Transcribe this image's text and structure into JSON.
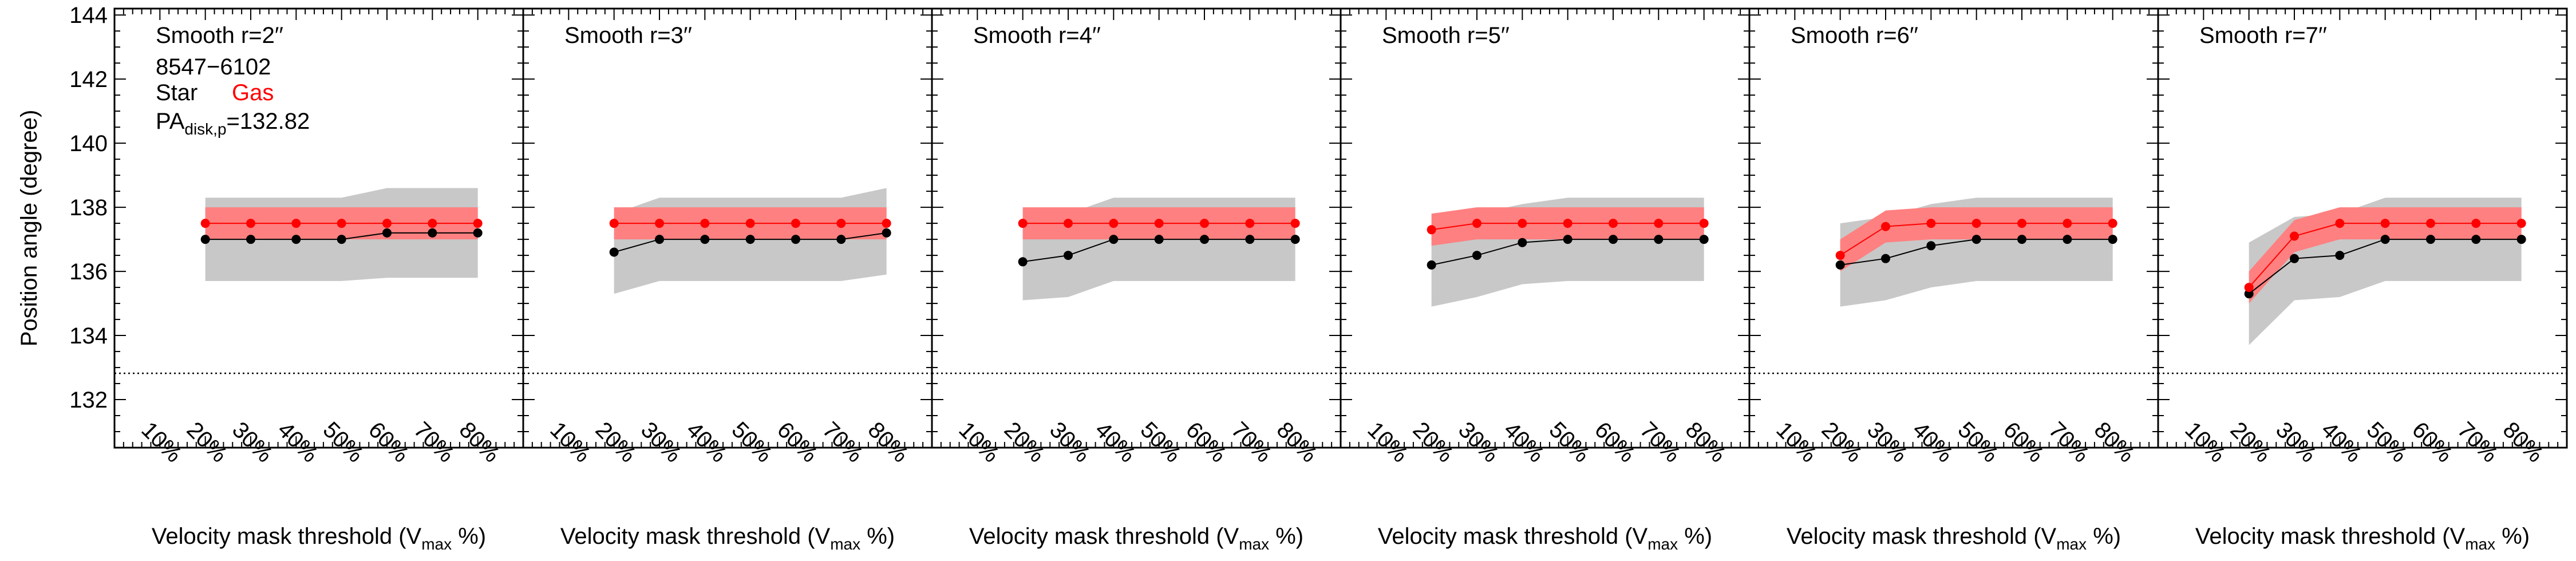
{
  "figure": {
    "ylabel": "Position angle (degree)",
    "xlabel_pre": "Velocity mask threshold (V",
    "xlabel_sub": "max",
    "xlabel_post": " %)",
    "galaxy_id": "8547−6102",
    "legend_star": "Star",
    "legend_gas": "Gas",
    "pa_label_pre": "PA",
    "pa_label_sub": "disk,p",
    "pa_label_post": "=132.82",
    "pa_disk": 132.82,
    "ylim": [
      130.5,
      144.2
    ],
    "yticks": [
      "132",
      "134",
      "136",
      "138",
      "140",
      "142",
      "144"
    ],
    "xticks": [
      "10%",
      "20%",
      "30%",
      "40%",
      "50%",
      "60%",
      "70%",
      "80%"
    ],
    "colors": {
      "star": "#000000",
      "gas": "#ff0000",
      "star_band": "#c8c8c8",
      "gas_band": "#ff8080"
    }
  },
  "chart_data": [
    {
      "type": "line",
      "title": "Smooth r=2′′",
      "x": [
        20,
        30,
        40,
        50,
        60,
        70,
        80
      ],
      "series": [
        {
          "name": "Star",
          "values": [
            137.0,
            137.0,
            137.0,
            137.0,
            137.2,
            137.2,
            137.2
          ],
          "lower": [
            135.7,
            135.7,
            135.7,
            135.7,
            135.8,
            135.8,
            135.8
          ],
          "upper": [
            138.3,
            138.3,
            138.3,
            138.3,
            138.6,
            138.6,
            138.6
          ]
        },
        {
          "name": "Gas",
          "values": [
            137.5,
            137.5,
            137.5,
            137.5,
            137.5,
            137.5,
            137.5
          ],
          "lower": [
            137.0,
            137.0,
            137.0,
            137.0,
            137.0,
            137.0,
            137.0
          ],
          "upper": [
            138.0,
            138.0,
            138.0,
            138.0,
            138.0,
            138.0,
            138.0
          ]
        }
      ]
    },
    {
      "type": "line",
      "title": "Smooth r=3′′",
      "x": [
        20,
        30,
        40,
        50,
        60,
        70,
        80
      ],
      "series": [
        {
          "name": "Star",
          "values": [
            136.6,
            137.0,
            137.0,
            137.0,
            137.0,
            137.0,
            137.2
          ],
          "lower": [
            135.3,
            135.7,
            135.7,
            135.7,
            135.7,
            135.7,
            135.9
          ],
          "upper": [
            137.8,
            138.3,
            138.3,
            138.3,
            138.3,
            138.3,
            138.6
          ]
        },
        {
          "name": "Gas",
          "values": [
            137.5,
            137.5,
            137.5,
            137.5,
            137.5,
            137.5,
            137.5
          ],
          "lower": [
            137.0,
            137.0,
            137.0,
            137.0,
            137.0,
            137.0,
            137.0
          ],
          "upper": [
            138.0,
            138.0,
            138.0,
            138.0,
            138.0,
            138.0,
            138.0
          ]
        }
      ]
    },
    {
      "type": "line",
      "title": "Smooth r=4′′",
      "x": [
        20,
        30,
        40,
        50,
        60,
        70,
        80
      ],
      "series": [
        {
          "name": "Star",
          "values": [
            136.3,
            136.5,
            137.0,
            137.0,
            137.0,
            137.0,
            137.0
          ],
          "lower": [
            135.1,
            135.2,
            135.7,
            135.7,
            135.7,
            135.7,
            135.7
          ],
          "upper": [
            137.5,
            137.8,
            138.3,
            138.3,
            138.3,
            138.3,
            138.3
          ]
        },
        {
          "name": "Gas",
          "values": [
            137.5,
            137.5,
            137.5,
            137.5,
            137.5,
            137.5,
            137.5
          ],
          "lower": [
            137.0,
            137.0,
            137.0,
            137.0,
            137.0,
            137.0,
            137.0
          ],
          "upper": [
            138.0,
            138.0,
            138.0,
            138.0,
            138.0,
            138.0,
            138.0
          ]
        }
      ]
    },
    {
      "type": "line",
      "title": "Smooth r=5′′",
      "x": [
        20,
        30,
        40,
        50,
        60,
        70,
        80
      ],
      "series": [
        {
          "name": "Star",
          "values": [
            136.2,
            136.5,
            136.9,
            137.0,
            137.0,
            137.0,
            137.0
          ],
          "lower": [
            134.9,
            135.2,
            135.6,
            135.7,
            135.7,
            135.7,
            135.7
          ],
          "upper": [
            137.4,
            137.8,
            138.1,
            138.3,
            138.3,
            138.3,
            138.3
          ]
        },
        {
          "name": "Gas",
          "values": [
            137.3,
            137.5,
            137.5,
            137.5,
            137.5,
            137.5,
            137.5
          ],
          "lower": [
            136.8,
            137.0,
            137.0,
            137.0,
            137.0,
            137.0,
            137.0
          ],
          "upper": [
            137.8,
            138.0,
            138.0,
            138.0,
            138.0,
            138.0,
            138.0
          ]
        }
      ]
    },
    {
      "type": "line",
      "title": "Smooth r=6′′",
      "x": [
        20,
        30,
        40,
        50,
        60,
        70,
        80
      ],
      "series": [
        {
          "name": "Star",
          "values": [
            136.2,
            136.4,
            136.8,
            137.0,
            137.0,
            137.0,
            137.0
          ],
          "lower": [
            134.9,
            135.1,
            135.5,
            135.7,
            135.7,
            135.7,
            135.7
          ],
          "upper": [
            137.5,
            137.7,
            138.1,
            138.3,
            138.3,
            138.3,
            138.3
          ]
        },
        {
          "name": "Gas",
          "values": [
            136.5,
            137.4,
            137.5,
            137.5,
            137.5,
            137.5,
            137.5
          ],
          "lower": [
            136.0,
            136.9,
            137.0,
            137.0,
            137.0,
            137.0,
            137.0
          ],
          "upper": [
            137.0,
            137.9,
            138.0,
            138.0,
            138.0,
            138.0,
            138.0
          ]
        }
      ]
    },
    {
      "type": "line",
      "title": "Smooth r=7′′",
      "x": [
        20,
        30,
        40,
        50,
        60,
        70,
        80
      ],
      "series": [
        {
          "name": "Star",
          "values": [
            135.3,
            136.4,
            136.5,
            137.0,
            137.0,
            137.0,
            137.0
          ],
          "lower": [
            133.7,
            135.1,
            135.2,
            135.7,
            135.7,
            135.7,
            135.7
          ],
          "upper": [
            136.9,
            137.7,
            137.8,
            138.3,
            138.3,
            138.3,
            138.3
          ]
        },
        {
          "name": "Gas",
          "values": [
            135.5,
            137.1,
            137.5,
            137.5,
            137.5,
            137.5,
            137.5
          ],
          "lower": [
            135.0,
            136.6,
            137.0,
            137.0,
            137.0,
            137.0,
            137.0
          ],
          "upper": [
            136.0,
            137.6,
            138.0,
            138.0,
            138.0,
            138.0,
            138.0
          ]
        }
      ]
    }
  ]
}
